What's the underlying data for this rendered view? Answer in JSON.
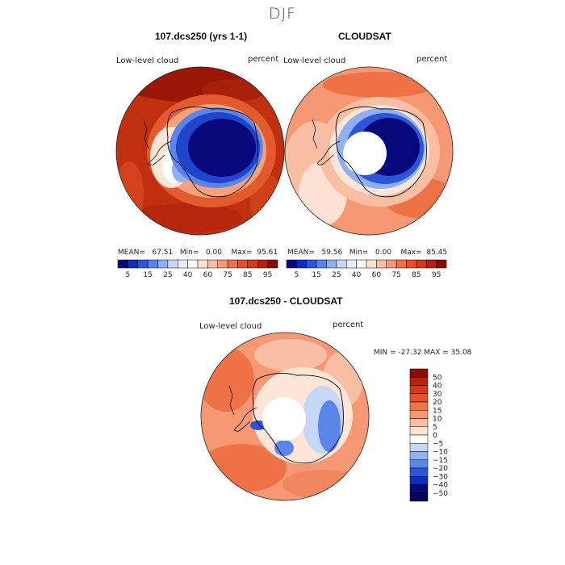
{
  "figure": {
    "season": "DJF"
  },
  "panels": [
    {
      "title": "107.dcs250 (yrs 1-1)",
      "variable": "Low-level cloud",
      "units": "percent",
      "stats": {
        "mean_label": "MEAN=",
        "mean": "67.51",
        "min_label": "Min=",
        "min": "0.00",
        "max_label": "Max=",
        "max": "95.61"
      }
    },
    {
      "title": "CLOUDSAT",
      "variable": "Low-level cloud",
      "units": "percent",
      "stats": {
        "mean_label": "MEAN=",
        "mean": "59.56",
        "min_label": "Min=",
        "min": "0.00",
        "max_label": "Max=",
        "max": "85.45"
      }
    },
    {
      "title": "107.dcs250 - CLOUDSAT",
      "variable": "Low-level cloud",
      "units": "percent",
      "minmax": "MIN = -27.32  MAX =  35.08"
    }
  ],
  "colorbar_abs": {
    "labels": [
      "5",
      "15",
      "25",
      "40",
      "60",
      "75",
      "85",
      "95"
    ],
    "colors": [
      "#08087a",
      "#0a2fbf",
      "#2b56d9",
      "#5a86ea",
      "#8fb0f2",
      "#c6d6f7",
      "#e8eefb",
      "#ffffff",
      "#fde1d2",
      "#f9bfa4",
      "#f59873",
      "#ef7246",
      "#e5502a",
      "#d4381b",
      "#b8200f",
      "#8e0a04"
    ]
  },
  "colorbar_diff": {
    "labels": [
      "50",
      "40",
      "30",
      "20",
      "15",
      "10",
      "5",
      "0",
      "−5",
      "−10",
      "−15",
      "−20",
      "−30",
      "−40",
      "−50"
    ],
    "colors": [
      "#8e0a04",
      "#b8200f",
      "#d4381b",
      "#e5502a",
      "#ef7246",
      "#f59873",
      "#f9bfa4",
      "#fde1d2",
      "#ffffff",
      "#c6d6f7",
      "#8fb0f2",
      "#5a86ea",
      "#2b56d9",
      "#0a2fbf",
      "#08087a",
      "#040458"
    ]
  }
}
